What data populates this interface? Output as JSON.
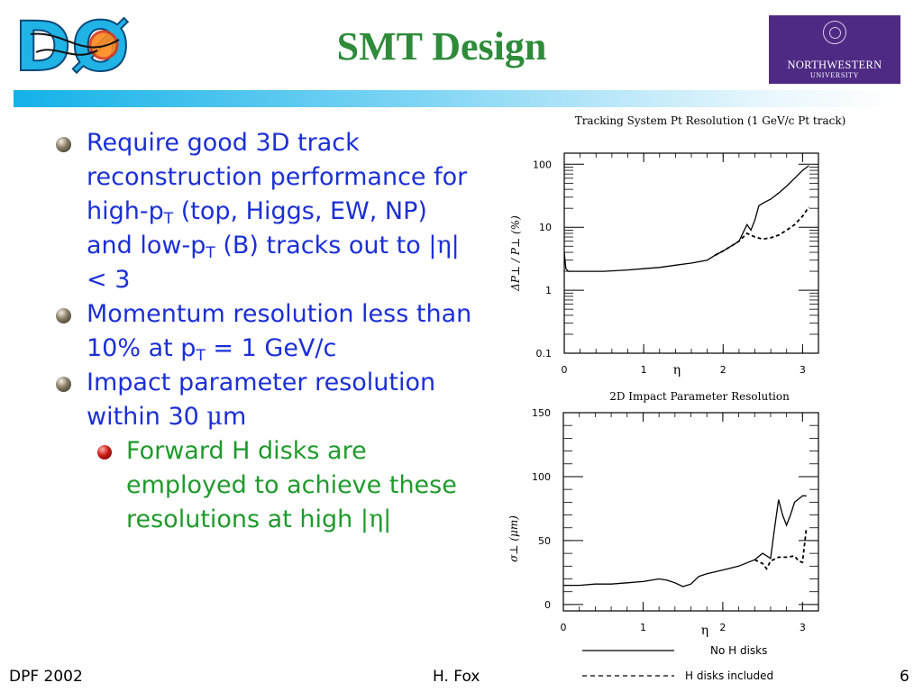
{
  "slide": {
    "title": "SMT Design",
    "logo_left": "DØ",
    "logo_right": {
      "name": "NORTHWESTERN",
      "sub": "UNIVERSITY"
    }
  },
  "bullets": [
    {
      "pre": "Require good 3D track reconstruction performance for high-p",
      "sub1": "T",
      "mid": " (top, Higgs, EW, NP) and low-p",
      "sub2": "T",
      "post_pre": " (B) tracks out to |",
      "greek": "η",
      "post": "| < 3"
    },
    {
      "pre": "Momentum resolution less than 10% at p",
      "sub1": "T",
      "post": " = 1 GeV/c"
    },
    {
      "pre": "Impact parameter resolution within 30 ",
      "greek": "μ",
      "post": "m"
    }
  ],
  "sub_bullet": {
    "pre": "Forward H disks are employed to achieve these resolutions at high |",
    "greek": "η",
    "post": "|"
  },
  "footer": {
    "left": "DPF 2002",
    "center": "H. Fox",
    "right": "6"
  },
  "chart_data": [
    {
      "type": "line",
      "title": "Tracking System Pt Resolution (1 GeV/c Pt track)",
      "xlabel": "η",
      "ylabel": "ΔP⊥ / P⊥ (%)",
      "yscale": "log",
      "xlim": [
        0,
        3.2
      ],
      "ylim": [
        0.1,
        150
      ],
      "xticks": [
        {
          "v": 0,
          "label": "0"
        },
        {
          "v": 1,
          "label": "1"
        },
        {
          "v": 2,
          "label": "2"
        },
        {
          "v": 3,
          "label": "3"
        }
      ],
      "yticks": [
        {
          "v": 100,
          "label": "100"
        },
        {
          "v": 10,
          "label": "10"
        },
        {
          "v": 1,
          "label": "1"
        },
        {
          "v": 0.1,
          "label": "0.1"
        }
      ],
      "series": [
        {
          "name": "No H disks",
          "style": "solid",
          "x": [
            0.0,
            0.02,
            0.05,
            0.1,
            0.3,
            0.5,
            0.8,
            1.0,
            1.2,
            1.4,
            1.6,
            1.8,
            1.9,
            2.0,
            2.1,
            2.2,
            2.3,
            2.35,
            2.4,
            2.45,
            2.5,
            2.6,
            2.7,
            2.8,
            2.9,
            3.0,
            3.08
          ],
          "y": [
            4.0,
            2.2,
            2.0,
            2.0,
            2.0,
            2.0,
            2.1,
            2.2,
            2.3,
            2.5,
            2.7,
            3.0,
            3.6,
            4.2,
            5.0,
            6.0,
            11.0,
            9.0,
            13.0,
            22.0,
            24.0,
            28.0,
            35.0,
            45.0,
            60.0,
            80.0,
            95.0
          ]
        },
        {
          "name": "H disks included",
          "style": "dashed",
          "x": [
            1.9,
            2.0,
            2.1,
            2.2,
            2.3,
            2.4,
            2.5,
            2.6,
            2.7,
            2.8,
            2.9,
            3.0,
            3.08
          ],
          "y": [
            3.6,
            4.2,
            5.0,
            6.0,
            8.0,
            7.0,
            6.5,
            6.8,
            7.5,
            9.0,
            11.0,
            15.0,
            21.0
          ]
        }
      ]
    },
    {
      "type": "line",
      "title": "2D Impact Parameter Resolution",
      "xlabel": "η",
      "ylabel": "σ⊥ (μm)",
      "xlim": [
        0,
        3.2
      ],
      "ylim": [
        -5,
        150
      ],
      "xticks": [
        {
          "v": 0,
          "label": "0"
        },
        {
          "v": 1,
          "label": "1"
        },
        {
          "v": 2,
          "label": "2"
        },
        {
          "v": 3,
          "label": "3"
        }
      ],
      "yticks": [
        {
          "v": 150,
          "label": "150"
        },
        {
          "v": 100,
          "label": "100"
        },
        {
          "v": 50,
          "label": "50"
        },
        {
          "v": 0,
          "label": "0"
        }
      ],
      "legend": {
        "position": "bottom"
      },
      "series": [
        {
          "name": "No H disks",
          "style": "solid",
          "x": [
            0.0,
            0.2,
            0.4,
            0.6,
            0.8,
            1.0,
            1.2,
            1.3,
            1.4,
            1.5,
            1.6,
            1.7,
            1.8,
            2.0,
            2.2,
            2.4,
            2.5,
            2.6,
            2.65,
            2.7,
            2.75,
            2.8,
            2.85,
            2.9,
            3.0,
            3.05
          ],
          "y": [
            15.0,
            15.0,
            16.0,
            16.0,
            17.0,
            18.0,
            20.0,
            19.0,
            17.0,
            14.0,
            16.0,
            22.0,
            24.0,
            27.0,
            30.0,
            35.0,
            40.0,
            36.0,
            60.0,
            82.0,
            70.0,
            62.0,
            70.0,
            80.0,
            85.0,
            85.0
          ]
        },
        {
          "name": "H disks included",
          "style": "dashed",
          "x": [
            2.4,
            2.5,
            2.55,
            2.6,
            2.7,
            2.8,
            2.9,
            2.95,
            3.0,
            3.05
          ],
          "y": [
            35.0,
            32.0,
            28.0,
            34.0,
            37.0,
            37.0,
            38.0,
            34.0,
            33.0,
            60.0
          ]
        }
      ]
    }
  ]
}
